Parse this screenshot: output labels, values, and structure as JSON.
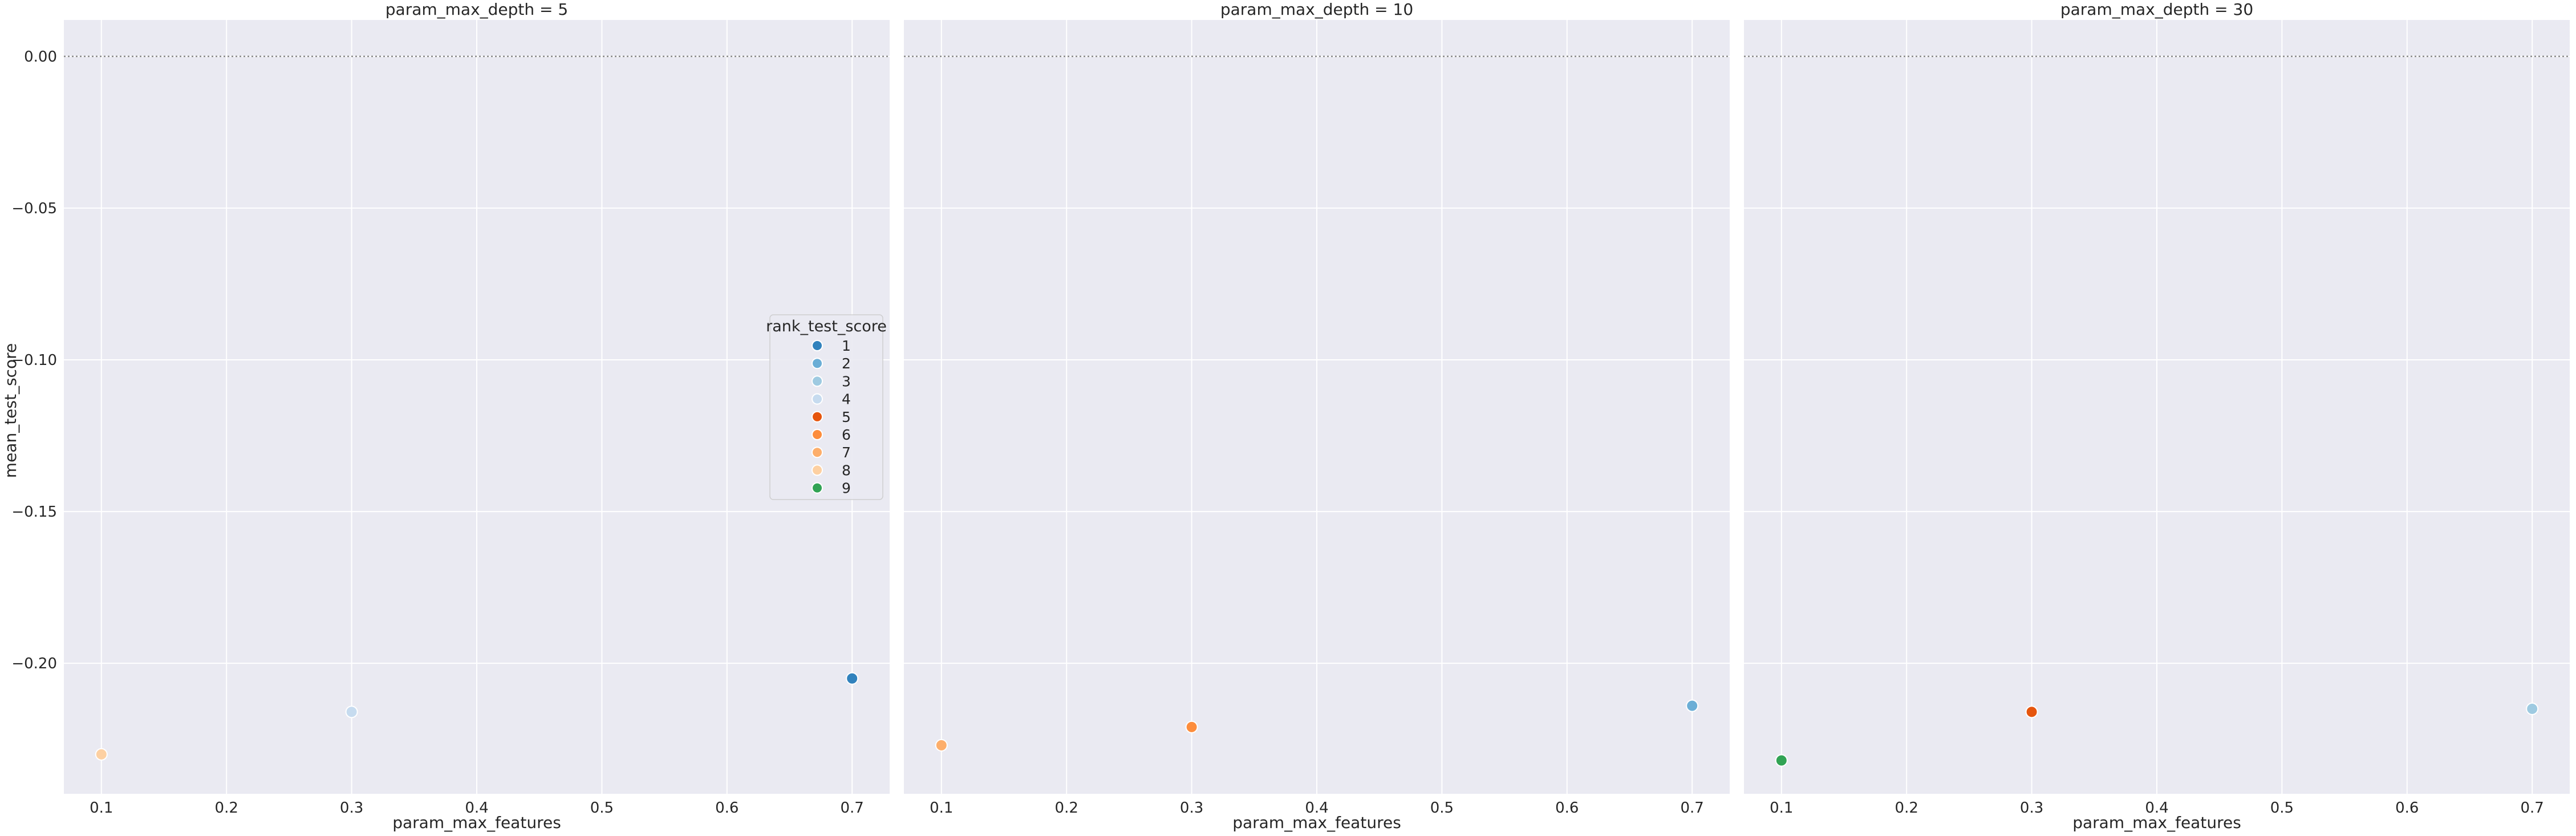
{
  "chart_data": {
    "type": "scatter",
    "facet_var": "param_max_depth",
    "xlabel": "param_max_features",
    "ylabel": "mean_test_score",
    "xlim": [
      0.07,
      0.73
    ],
    "ylim": [
      -0.243,
      0.012
    ],
    "x_ticks": [
      0.1,
      0.2,
      0.3,
      0.4,
      0.5,
      0.6,
      0.7
    ],
    "x_tick_labels": [
      "0.1",
      "0.2",
      "0.3",
      "0.4",
      "0.5",
      "0.6",
      "0.7"
    ],
    "y_ticks": [
      0.0,
      -0.05,
      -0.1,
      -0.15,
      -0.2
    ],
    "y_tick_labels": [
      "0.00",
      "−0.05",
      "−0.10",
      "−0.15",
      "−0.20"
    ],
    "reference_line_y": 0.0,
    "grid": true,
    "panels": [
      {
        "title": "param_max_depth = 5",
        "points": [
          {
            "x": 0.1,
            "y": -0.23,
            "rank": 8
          },
          {
            "x": 0.3,
            "y": -0.216,
            "rank": 4
          },
          {
            "x": 0.7,
            "y": -0.205,
            "rank": 1
          }
        ]
      },
      {
        "title": "param_max_depth = 10",
        "points": [
          {
            "x": 0.1,
            "y": -0.227,
            "rank": 7
          },
          {
            "x": 0.3,
            "y": -0.221,
            "rank": 6
          },
          {
            "x": 0.7,
            "y": -0.214,
            "rank": 2
          }
        ]
      },
      {
        "title": "param_max_depth = 30",
        "points": [
          {
            "x": 0.1,
            "y": -0.232,
            "rank": 9
          },
          {
            "x": 0.3,
            "y": -0.216,
            "rank": 5
          },
          {
            "x": 0.7,
            "y": -0.215,
            "rank": 3
          }
        ]
      }
    ],
    "legend": {
      "title": "rank_test_score",
      "placement": "center-right of first panel",
      "entries": [
        {
          "label": "1",
          "color": "#3182bd"
        },
        {
          "label": "2",
          "color": "#6baed6"
        },
        {
          "label": "3",
          "color": "#9ecae1"
        },
        {
          "label": "4",
          "color": "#c6dbef"
        },
        {
          "label": "5",
          "color": "#e6550d"
        },
        {
          "label": "6",
          "color": "#fd8d3c"
        },
        {
          "label": "7",
          "color": "#fdae6b"
        },
        {
          "label": "8",
          "color": "#fdd0a2"
        },
        {
          "label": "9",
          "color": "#31a354"
        }
      ]
    },
    "colors": {
      "plot_background": "#eaeaf2",
      "grid": "#ffffff",
      "reference_line": "#8c8c8c",
      "marker_edge": "#ffffff"
    }
  }
}
